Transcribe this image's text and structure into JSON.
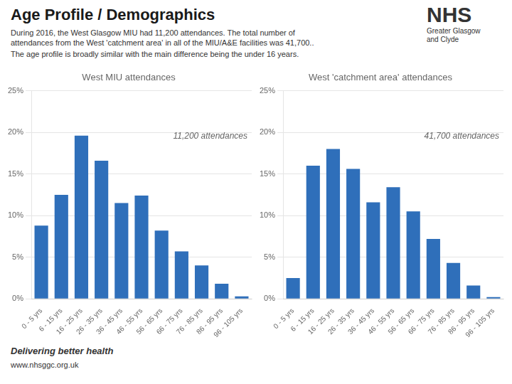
{
  "title": "Age Profile / Demographics",
  "subtitle": [
    "During 2016, the West Glasgow MIU had 11,200 attendances. The total number of",
    "attendances from the West 'catchment area' in all of the MIU/A&E facilities was 41,700..",
    "The age profile is broadly similar with the main difference being the under 16 years."
  ],
  "logo": [
    "NHS",
    "Greater Glasgow",
    "and Clyde"
  ],
  "footer": [
    "Delivering better health",
    "www.nhsggc.org.uk"
  ],
  "chart_data": [
    {
      "type": "bar",
      "title": "West MIU attendances",
      "annotation": "11,200 attendances",
      "categories": [
        "0 - 5 yrs",
        "6 - 15 yrs",
        "16 - 25 yrs",
        "26 - 35 yrs",
        "36 - 45 yrs",
        "46 - 55 yrs",
        "56 - 65 yrs",
        "66 - 75 yrs",
        "76 - 85 yrs",
        "86 - 95 yrs",
        "96 - 105 yrs"
      ],
      "values": [
        0.088,
        0.125,
        0.196,
        0.166,
        0.115,
        0.124,
        0.082,
        0.057,
        0.04,
        0.018,
        0.003
      ],
      "color": "#2f6fba",
      "ylim": [
        0,
        0.25
      ],
      "yticks": [
        {
          "value": 0,
          "label": "0%"
        },
        {
          "value": 0.05,
          "label": "5%"
        },
        {
          "value": 0.1,
          "label": "10%"
        },
        {
          "value": 0.15,
          "label": "15%"
        },
        {
          "value": 0.2,
          "label": "20%"
        },
        {
          "value": 0.25,
          "label": "25%"
        }
      ],
      "grid": true
    },
    {
      "type": "bar",
      "title": "West 'catchment area' attendances",
      "annotation": "41,700 attendances",
      "categories": [
        "0 - 5 yrs",
        "6 - 15 yrs",
        "16 - 25 yrs",
        "26 - 35 yrs",
        "36 - 45 yrs",
        "46 - 55 yrs",
        "56 - 65 yrs",
        "66 - 75 yrs",
        "76 - 85 yrs",
        "86 - 95 yrs",
        "96 - 105 yrs"
      ],
      "values": [
        0.025,
        0.16,
        0.18,
        0.156,
        0.116,
        0.134,
        0.105,
        0.072,
        0.043,
        0.016,
        0.002
      ],
      "color": "#2f6fba",
      "ylim": [
        0,
        0.25
      ],
      "yticks": [
        {
          "value": 0,
          "label": "0%"
        },
        {
          "value": 0.05,
          "label": "5%"
        },
        {
          "value": 0.1,
          "label": "10%"
        },
        {
          "value": 0.15,
          "label": "15%"
        },
        {
          "value": 0.2,
          "label": "20%"
        },
        {
          "value": 0.25,
          "label": "25%"
        }
      ],
      "grid": true
    }
  ]
}
